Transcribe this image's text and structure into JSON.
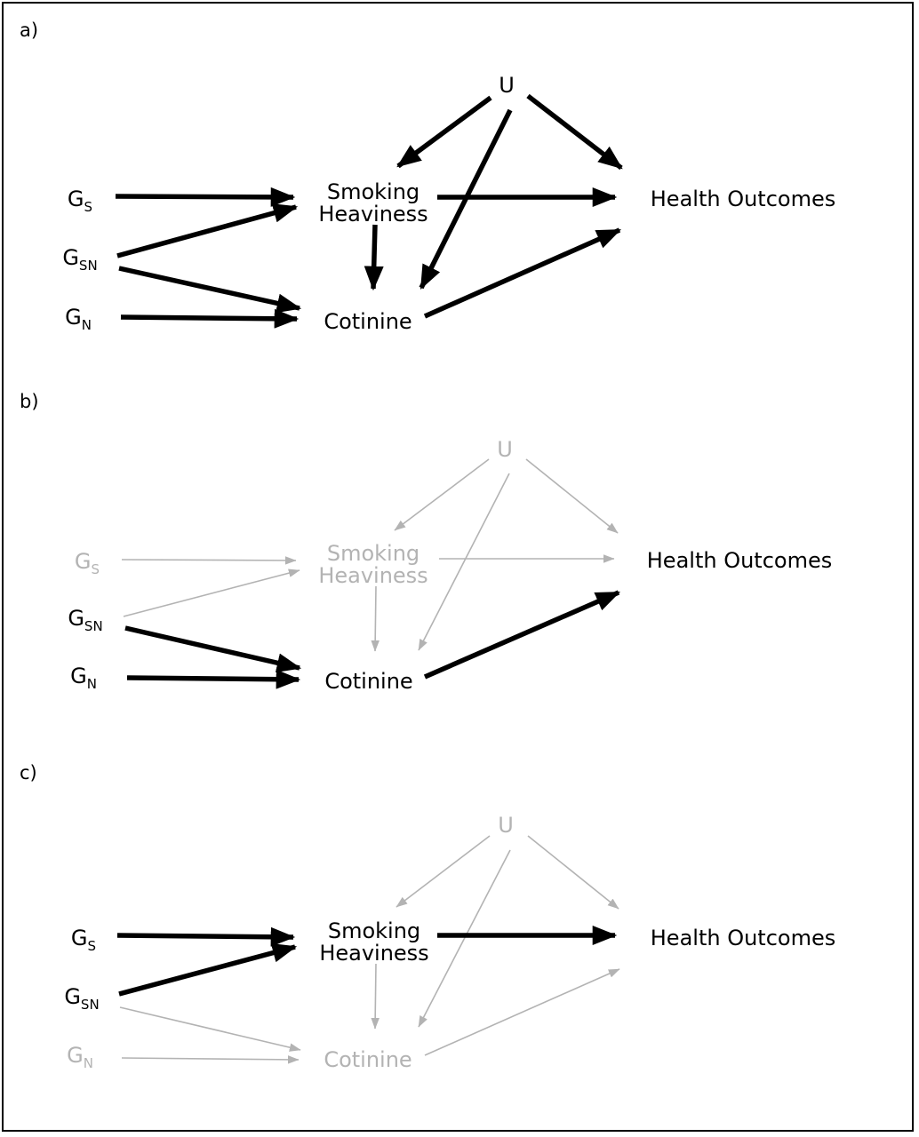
{
  "colors": {
    "dark": "#000000",
    "light": "#b3b3b3"
  },
  "panels": [
    {
      "label": "a)",
      "nodes": {
        "U": {
          "text": "U",
          "sub": "",
          "state": "dark"
        },
        "GS": {
          "text": "G",
          "sub": "S",
          "state": "dark"
        },
        "GSN": {
          "text": "G",
          "sub": "SN",
          "state": "dark"
        },
        "GN": {
          "text": "G",
          "sub": "N",
          "state": "dark"
        },
        "SH": {
          "line1": "Smoking",
          "line2": "Heaviness",
          "state": "dark"
        },
        "COT": {
          "text": "Cotinine",
          "state": "dark"
        },
        "HO": {
          "text": "Health Outcomes",
          "state": "dark"
        }
      },
      "edges": [
        {
          "from": "U",
          "to": "SH",
          "state": "dark"
        },
        {
          "from": "U",
          "to": "COT",
          "state": "dark"
        },
        {
          "from": "U",
          "to": "HO",
          "state": "dark"
        },
        {
          "from": "GS",
          "to": "SH",
          "state": "dark"
        },
        {
          "from": "GSN",
          "to": "SH",
          "state": "dark"
        },
        {
          "from": "GSN",
          "to": "COT",
          "state": "dark"
        },
        {
          "from": "GN",
          "to": "COT",
          "state": "dark"
        },
        {
          "from": "SH",
          "to": "COT",
          "state": "dark"
        },
        {
          "from": "SH",
          "to": "HO",
          "state": "dark"
        },
        {
          "from": "COT",
          "to": "HO",
          "state": "dark"
        }
      ]
    },
    {
      "label": "b)",
      "nodes": {
        "U": {
          "text": "U",
          "sub": "",
          "state": "light"
        },
        "GS": {
          "text": "G",
          "sub": "S",
          "state": "light"
        },
        "GSN": {
          "text": "G",
          "sub": "SN",
          "state": "dark"
        },
        "GN": {
          "text": "G",
          "sub": "N",
          "state": "dark"
        },
        "SH": {
          "line1": "Smoking",
          "line2": "Heaviness",
          "state": "light"
        },
        "COT": {
          "text": "Cotinine",
          "state": "dark"
        },
        "HO": {
          "text": "Health Outcomes",
          "state": "dark"
        }
      },
      "edges": [
        {
          "from": "U",
          "to": "SH",
          "state": "light"
        },
        {
          "from": "U",
          "to": "COT",
          "state": "light"
        },
        {
          "from": "U",
          "to": "HO",
          "state": "light"
        },
        {
          "from": "GS",
          "to": "SH",
          "state": "light"
        },
        {
          "from": "GSN",
          "to": "SH",
          "state": "light"
        },
        {
          "from": "GSN",
          "to": "COT",
          "state": "dark"
        },
        {
          "from": "GN",
          "to": "COT",
          "state": "dark"
        },
        {
          "from": "SH",
          "to": "COT",
          "state": "light"
        },
        {
          "from": "SH",
          "to": "HO",
          "state": "light"
        },
        {
          "from": "COT",
          "to": "HO",
          "state": "dark"
        }
      ]
    },
    {
      "label": "c)",
      "nodes": {
        "U": {
          "text": "U",
          "sub": "",
          "state": "light"
        },
        "GS": {
          "text": "G",
          "sub": "S",
          "state": "dark"
        },
        "GSN": {
          "text": "G",
          "sub": "SN",
          "state": "dark"
        },
        "GN": {
          "text": "G",
          "sub": "N",
          "state": "light"
        },
        "SH": {
          "line1": "Smoking",
          "line2": "Heaviness",
          "state": "dark"
        },
        "COT": {
          "text": "Cotinine",
          "state": "light"
        },
        "HO": {
          "text": "Health Outcomes",
          "state": "dark"
        }
      },
      "edges": [
        {
          "from": "U",
          "to": "SH",
          "state": "light"
        },
        {
          "from": "U",
          "to": "COT",
          "state": "light"
        },
        {
          "from": "U",
          "to": "HO",
          "state": "light"
        },
        {
          "from": "GS",
          "to": "SH",
          "state": "dark"
        },
        {
          "from": "GSN",
          "to": "SH",
          "state": "dark"
        },
        {
          "from": "GSN",
          "to": "COT",
          "state": "light"
        },
        {
          "from": "GN",
          "to": "COT",
          "state": "light"
        },
        {
          "from": "SH",
          "to": "COT",
          "state": "light"
        },
        {
          "from": "SH",
          "to": "HO",
          "state": "dark"
        },
        {
          "from": "COT",
          "to": "HO",
          "state": "light"
        }
      ]
    }
  ]
}
